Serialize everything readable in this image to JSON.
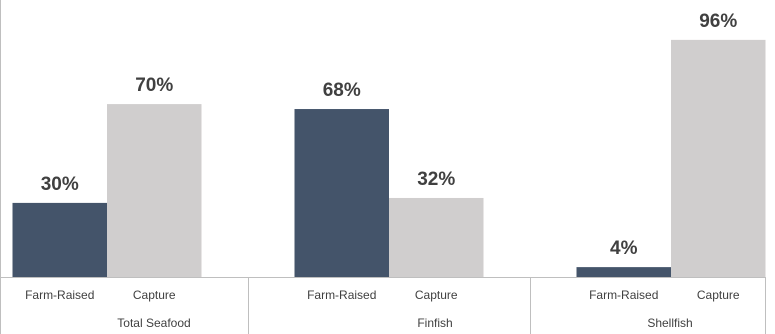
{
  "chart_data": {
    "type": "bar",
    "categories": [
      "Total Seafood",
      "Finfish",
      "Shellfish"
    ],
    "series": [
      {
        "name": "Farm-Raised",
        "color": "#44546a",
        "values": [
          30,
          68,
          4
        ],
        "value_labels": [
          "30%",
          "68%",
          "4%"
        ]
      },
      {
        "name": "Capture",
        "color": "#d0cece",
        "values": [
          70,
          32,
          96
        ],
        "value_labels": [
          "70%",
          "32%",
          "96%"
        ]
      }
    ]
  }
}
